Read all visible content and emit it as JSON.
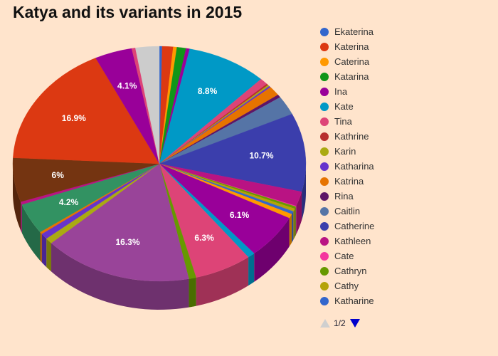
{
  "chart_data": {
    "type": "pie",
    "title": "Katya and its variants in 2015",
    "slices": [
      {
        "label": "Ekaterina",
        "value": 0.3,
        "color": "#3366cc"
      },
      {
        "label": "Katerina",
        "value": 1.2,
        "color": "#dc3912"
      },
      {
        "label": "Caterina",
        "value": 0.4,
        "color": "#ff9900"
      },
      {
        "label": "Katarina",
        "value": 1.0,
        "color": "#109618"
      },
      {
        "label": "Ina",
        "value": 0.4,
        "color": "#990099"
      },
      {
        "label": "Kate",
        "value": 8.8,
        "color": "#0099c6",
        "data_label": "8.8%"
      },
      {
        "label": "Tina",
        "value": 0.9,
        "color": "#dd4477"
      },
      {
        "label": "Kathrine",
        "value": 0.2,
        "color": "#b82e2e"
      },
      {
        "label": "Karin",
        "value": 0.2,
        "color": "#aaaa11"
      },
      {
        "label": "Katharina",
        "value": 0.2,
        "color": "#6633cc"
      },
      {
        "label": "Katrina",
        "value": 1.3,
        "color": "#e67300"
      },
      {
        "label": "Rina",
        "value": 0.4,
        "color": "#5e1566"
      },
      {
        "label": "Caitlin",
        "value": 2.6,
        "color": "#5574a6"
      },
      {
        "label": "Catherine",
        "value": 10.7,
        "color": "#3b3eac",
        "data_label": "10.7%"
      },
      {
        "label": "Kathleen",
        "value": 2.0,
        "color": "#b91383"
      },
      {
        "label": "Cate",
        "value": 0.1,
        "color": "#f4359e"
      },
      {
        "label": "Cathryn",
        "value": 0.3,
        "color": "#669900"
      },
      {
        "label": "Cathy",
        "value": 0.4,
        "color": "#b4a308"
      },
      {
        "label": "Katharine",
        "value": 0.4,
        "color": "#3366cc"
      },
      {
        "label": "",
        "value": 0.6,
        "color": "#ff9900"
      },
      {
        "label": "",
        "value": 6.1,
        "color": "#990099",
        "data_label": "6.1%"
      },
      {
        "label": "",
        "value": 0.8,
        "color": "#0099c6"
      },
      {
        "label": "",
        "value": 6.3,
        "color": "#dd4477",
        "data_label": "6.3%"
      },
      {
        "label": "",
        "value": 0.8,
        "color": "#669900"
      },
      {
        "label": "",
        "value": 16.3,
        "color": "#994499",
        "data_label": "16.3%"
      },
      {
        "label": "",
        "value": 0.8,
        "color": "#aaaa11"
      },
      {
        "label": "",
        "value": 0.8,
        "color": "#6633cc"
      },
      {
        "label": "",
        "value": 0.3,
        "color": "#e67300"
      },
      {
        "label": "",
        "value": 4.2,
        "color": "#329262",
        "data_label": "4.2%"
      },
      {
        "label": "",
        "value": 0.4,
        "color": "#b91383"
      },
      {
        "label": "",
        "value": 6.0,
        "color": "#743411",
        "data_label": "6%"
      },
      {
        "label": "",
        "value": 16.9,
        "color": "#dc3912",
        "data_label": "16.9%"
      },
      {
        "label": "",
        "value": 4.1,
        "color": "#990099",
        "data_label": "4.1%"
      },
      {
        "label": "",
        "value": 0.4,
        "color": "#dd4477"
      },
      {
        "label": "",
        "value": 2.6,
        "color": "#cccccc"
      }
    ],
    "legend_position": "right",
    "pie_style": "3d"
  },
  "legend": {
    "page_text": "1/2"
  }
}
